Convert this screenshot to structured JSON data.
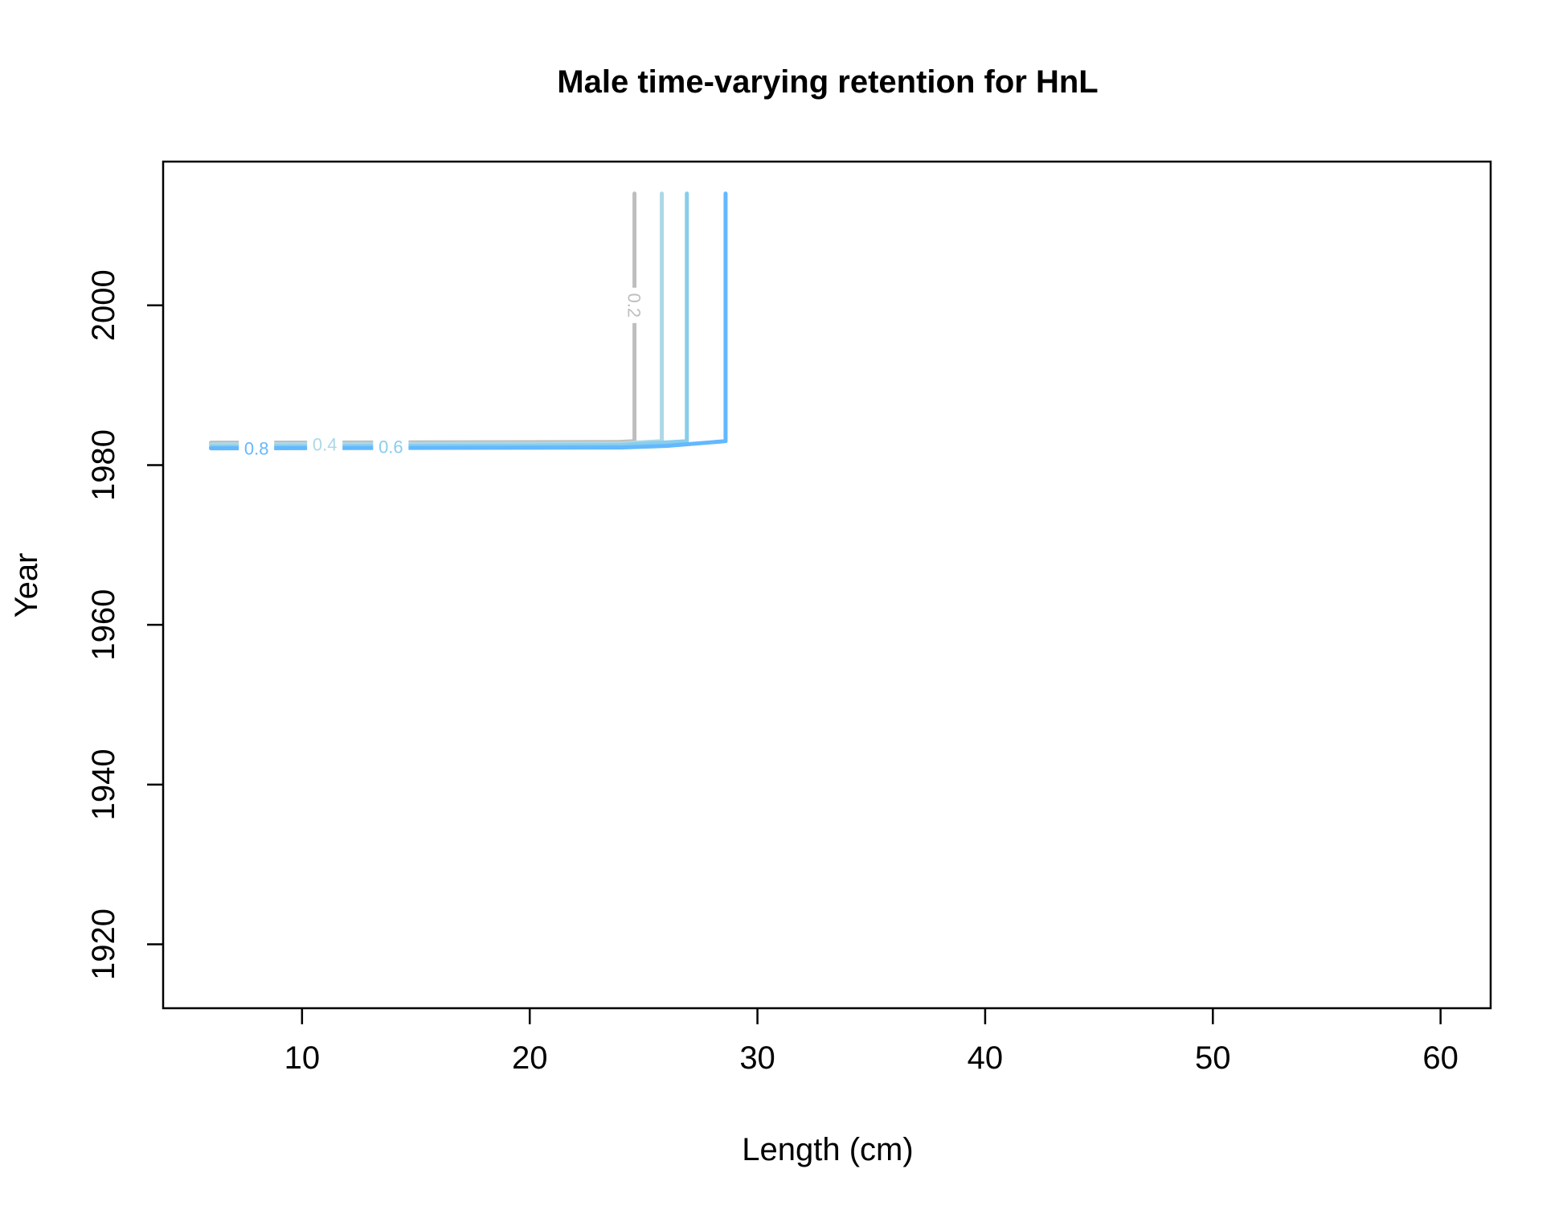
{
  "chart_data": {
    "type": "line",
    "title": "Male time-varying retention for HnL",
    "xlabel": "Length (cm)",
    "ylabel": "Year",
    "xlim": [
      3.9,
      62.2
    ],
    "ylim": [
      1912,
      2018
    ],
    "x_ticks": [
      10,
      20,
      30,
      40,
      50,
      60
    ],
    "y_ticks": [
      1920,
      1940,
      1960,
      1980,
      2000
    ],
    "grid": false,
    "series": [
      {
        "name": "0.2",
        "color": "#bebebe",
        "label_at": [
          24.6,
          2000
        ],
        "points": [
          [
            6,
            1982.8
          ],
          [
            24,
            1982.9
          ],
          [
            24.6,
            1983
          ],
          [
            24.6,
            2014
          ]
        ]
      },
      {
        "name": "0.4",
        "color": "#add8e6",
        "label_at": [
          11,
          1982.6
        ],
        "points": [
          [
            6,
            1982.6
          ],
          [
            24,
            1982.7
          ],
          [
            25.8,
            1983
          ],
          [
            25.8,
            2014
          ]
        ]
      },
      {
        "name": "0.6",
        "color": "#87ceeb",
        "label_at": [
          13.9,
          1982.3
        ],
        "points": [
          [
            6,
            1982.3
          ],
          [
            24,
            1982.5
          ],
          [
            26.9,
            1983
          ],
          [
            26.9,
            2014
          ]
        ]
      },
      {
        "name": "0.8",
        "color": "#63b8ff",
        "label_at": [
          8,
          1982.1
        ],
        "points": [
          [
            6,
            1982.1
          ],
          [
            24,
            1982.2
          ],
          [
            26,
            1982.4
          ],
          [
            28.6,
            1983
          ],
          [
            28.6,
            2014
          ]
        ]
      }
    ]
  }
}
